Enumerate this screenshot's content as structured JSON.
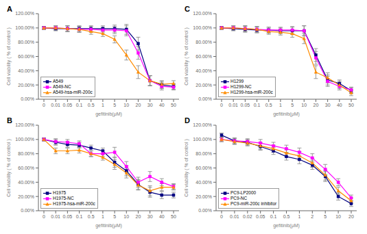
{
  "chart_data": [
    {
      "type": "line",
      "title": "A",
      "xlabel": "gefitinib(μM)",
      "ylabel": "Cell viability ( % of control )",
      "categories": [
        "0",
        "0.01",
        "0.05",
        "0.1",
        "0.5",
        "1",
        "5",
        "10",
        "20",
        "30",
        "40",
        "50"
      ],
      "series": [
        {
          "name": "A549",
          "color": "#000080",
          "marker": "square",
          "values": [
            100,
            99,
            99,
            99,
            99,
            99,
            99,
            98,
            78,
            26,
            20,
            18
          ],
          "errors": [
            2,
            3,
            4,
            4,
            4,
            4,
            5,
            7,
            9,
            7,
            5,
            4
          ]
        },
        {
          "name": "A549-NC",
          "color": "#FF00FF",
          "marker": "square",
          "values": [
            100,
            100,
            99,
            98,
            98,
            97,
            97,
            96,
            65,
            26,
            18,
            17
          ],
          "errors": [
            2,
            3,
            4,
            4,
            4,
            4,
            5,
            7,
            9,
            7,
            5,
            4
          ]
        },
        {
          "name": "A549-hsa-miR-200c",
          "color": "#FF8C00",
          "marker": "triangle",
          "values": [
            100,
            100,
            99,
            98,
            95,
            92,
            84,
            62,
            38,
            26,
            21,
            22
          ],
          "errors": [
            2,
            3,
            4,
            4,
            4,
            4,
            5,
            7,
            9,
            7,
            5,
            4
          ]
        }
      ],
      "ylim": [
        0,
        120
      ],
      "yticks": [
        {
          "value": 0,
          "label": "0.00%"
        },
        {
          "value": 20,
          "label": "20.00%"
        },
        {
          "value": 40,
          "label": "40.00%"
        },
        {
          "value": 60,
          "label": "60.00%"
        },
        {
          "value": 80,
          "label": "80.00%"
        },
        {
          "value": 100,
          "label": "100.00%"
        },
        {
          "value": 120,
          "label": "120.00%"
        }
      ],
      "legend": "lower left",
      "grid": false
    },
    {
      "type": "line",
      "title": "B",
      "xlabel": "gefitinib(μM)",
      "ylabel": "Cell viability ( % of control )",
      "categories": [
        "0",
        "0.01",
        "0.05",
        "0.1",
        "0.5",
        "1",
        "5",
        "10",
        "20",
        "30",
        "40",
        "50"
      ],
      "series": [
        {
          "name": "H1975",
          "color": "#000080",
          "marker": "square",
          "values": [
            100,
            96,
            93,
            92,
            88,
            84,
            68,
            56,
            37,
            26,
            22,
            22
          ],
          "errors": [
            2,
            4,
            4,
            4,
            4,
            4,
            7,
            7,
            7,
            7,
            5,
            4
          ]
        },
        {
          "name": "H1975-NC",
          "color": "#FF00FF",
          "marker": "square",
          "values": [
            100,
            97,
            96,
            94,
            80,
            80,
            82,
            62,
            40,
            48,
            40,
            34
          ],
          "errors": [
            2,
            4,
            4,
            4,
            4,
            4,
            7,
            7,
            7,
            7,
            5,
            4
          ]
        },
        {
          "name": "H1975-hsa-miR-200c",
          "color": "#FF8C00",
          "marker": "triangle",
          "values": [
            100,
            84,
            84,
            85,
            80,
            75,
            65,
            53,
            36,
            28,
            33,
            33
          ],
          "errors": [
            2,
            4,
            4,
            4,
            4,
            4,
            7,
            7,
            7,
            7,
            5,
            4
          ]
        }
      ],
      "ylim": [
        0,
        120
      ],
      "yticks": [
        {
          "value": 0,
          "label": "0.00%"
        },
        {
          "value": 20,
          "label": "20.00%"
        },
        {
          "value": 40,
          "label": "40.00%"
        },
        {
          "value": 60,
          "label": "60.00%"
        },
        {
          "value": 80,
          "label": "80.00%"
        },
        {
          "value": 100,
          "label": "100.00%"
        },
        {
          "value": 120,
          "label": "120.00%"
        }
      ],
      "legend": "lower left",
      "grid": false
    },
    {
      "type": "line",
      "title": "C",
      "xlabel": "gefitinib(μM)",
      "ylabel": "Cell viability ( % of control )",
      "categories": [
        "0",
        "0.01",
        "0.05",
        "0.1",
        "0.5",
        "1",
        "5",
        "10",
        "20",
        "30",
        "40",
        "50"
      ],
      "series": [
        {
          "name": "H1299",
          "color": "#000080",
          "marker": "square",
          "values": [
            100,
            99,
            98,
            97,
            97,
            96,
            96,
            96,
            62,
            27,
            22,
            12
          ],
          "errors": [
            2,
            3,
            4,
            4,
            4,
            4,
            5,
            7,
            9,
            7,
            5,
            4
          ]
        },
        {
          "name": "H1299-NC",
          "color": "#FF00FF",
          "marker": "square",
          "values": [
            100,
            100,
            99,
            98,
            97,
            97,
            97,
            96,
            58,
            25,
            18,
            13
          ],
          "errors": [
            2,
            3,
            4,
            4,
            4,
            4,
            5,
            7,
            9,
            7,
            5,
            4
          ]
        },
        {
          "name": "H1299-hsa-miR-200c",
          "color": "#FF8C00",
          "marker": "triangle",
          "values": [
            100,
            100,
            99,
            98,
            95,
            94,
            92,
            85,
            38,
            30,
            20,
            9
          ],
          "errors": [
            2,
            3,
            4,
            4,
            4,
            4,
            5,
            7,
            9,
            7,
            5,
            4
          ]
        }
      ],
      "ylim": [
        0,
        120
      ],
      "yticks": [
        {
          "value": 0,
          "label": "0.00%"
        },
        {
          "value": 20,
          "label": "20.00%"
        },
        {
          "value": 40,
          "label": "40.00%"
        },
        {
          "value": 60,
          "label": "60.00%"
        },
        {
          "value": 80,
          "label": "80.00%"
        },
        {
          "value": 100,
          "label": "100.00%"
        },
        {
          "value": 120,
          "label": "120.00%"
        }
      ],
      "legend": "lower left",
      "grid": false
    },
    {
      "type": "line",
      "title": "D",
      "xlabel": "gefitinib(μM)",
      "ylabel": "Cell viability ( % of control )",
      "categories": [
        "0",
        "0.01",
        "0.02",
        "0.05",
        "0.1",
        "0.5",
        "1",
        "2",
        "5",
        "10",
        "20"
      ],
      "series": [
        {
          "name": "PC9-LP2000",
          "color": "#000080",
          "marker": "square",
          "values": [
            106,
            98,
            96,
            90,
            84,
            76,
            72,
            64,
            48,
            20,
            10
          ],
          "errors": [
            3,
            4,
            4,
            5,
            5,
            5,
            6,
            6,
            7,
            5,
            4
          ]
        },
        {
          "name": "PC9-NC",
          "color": "#FF00FF",
          "marker": "square",
          "values": [
            100,
            98,
            97,
            95,
            91,
            87,
            82,
            74,
            58,
            40,
            18
          ],
          "errors": [
            3,
            4,
            4,
            5,
            5,
            5,
            6,
            6,
            7,
            5,
            4
          ]
        },
        {
          "name": "PC9-miR-200c inhibitor",
          "color": "#FF8C00",
          "marker": "triangle",
          "values": [
            100,
            97,
            95,
            91,
            87,
            81,
            77,
            67,
            50,
            28,
            14
          ],
          "errors": [
            3,
            4,
            4,
            5,
            5,
            5,
            6,
            6,
            7,
            5,
            4
          ]
        }
      ],
      "ylim": [
        0,
        120
      ],
      "yticks": [
        {
          "value": 0,
          "label": "0.00%"
        },
        {
          "value": 20,
          "label": "20.00%"
        },
        {
          "value": 40,
          "label": "40.00%"
        },
        {
          "value": 60,
          "label": "60.00%"
        },
        {
          "value": 80,
          "label": "80.00%"
        },
        {
          "value": 100,
          "label": "100.00%"
        },
        {
          "value": 120,
          "label": "120.00%"
        }
      ],
      "legend": "lower left",
      "grid": false
    }
  ]
}
